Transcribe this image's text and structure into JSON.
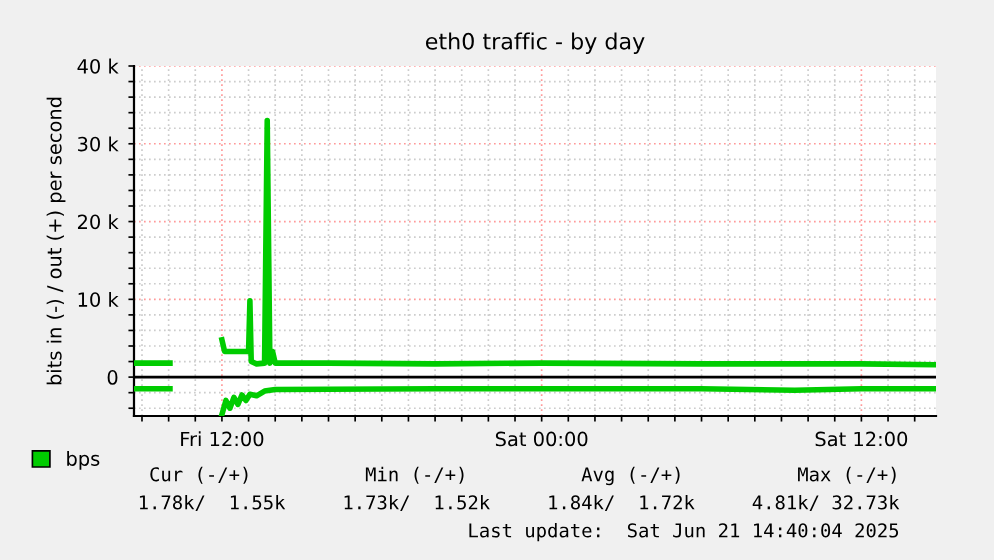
{
  "chart_data": {
    "type": "line",
    "title": "eth0 traffic - by day",
    "ylabel": "bits in (-) / out (+) per second",
    "xlim": [
      "2025-06-20T08:42",
      "2025-06-21T14:48"
    ],
    "ylim": [
      -5000,
      40000
    ],
    "xticks": [
      {
        "value": "2025-06-20T09:00",
        "label": null
      },
      {
        "value": "2025-06-20T10:00",
        "label": null
      },
      {
        "value": "2025-06-20T11:00",
        "label": null
      },
      {
        "value": "2025-06-20T12:00",
        "label": "Fri 12:00"
      },
      {
        "value": "2025-06-20T13:00",
        "label": null
      },
      {
        "value": "2025-06-20T14:00",
        "label": null
      },
      {
        "value": "2025-06-20T15:00",
        "label": null
      },
      {
        "value": "2025-06-20T16:00",
        "label": null
      },
      {
        "value": "2025-06-20T17:00",
        "label": null
      },
      {
        "value": "2025-06-20T18:00",
        "label": null
      },
      {
        "value": "2025-06-20T19:00",
        "label": null
      },
      {
        "value": "2025-06-20T20:00",
        "label": null
      },
      {
        "value": "2025-06-20T21:00",
        "label": null
      },
      {
        "value": "2025-06-20T22:00",
        "label": null
      },
      {
        "value": "2025-06-20T23:00",
        "label": null
      },
      {
        "value": "2025-06-21T00:00",
        "label": "Sat 00:00"
      },
      {
        "value": "2025-06-21T01:00",
        "label": null
      },
      {
        "value": "2025-06-21T02:00",
        "label": null
      },
      {
        "value": "2025-06-21T03:00",
        "label": null
      },
      {
        "value": "2025-06-21T04:00",
        "label": null
      },
      {
        "value": "2025-06-21T05:00",
        "label": null
      },
      {
        "value": "2025-06-21T06:00",
        "label": null
      },
      {
        "value": "2025-06-21T07:00",
        "label": null
      },
      {
        "value": "2025-06-21T08:00",
        "label": null
      },
      {
        "value": "2025-06-21T09:00",
        "label": null
      },
      {
        "value": "2025-06-21T10:00",
        "label": null
      },
      {
        "value": "2025-06-21T11:00",
        "label": null
      },
      {
        "value": "2025-06-21T12:00",
        "label": "Sat 12:00"
      },
      {
        "value": "2025-06-21T13:00",
        "label": null
      },
      {
        "value": "2025-06-21T14:00",
        "label": null
      }
    ],
    "yticks": [
      {
        "value": -4000,
        "label": null
      },
      {
        "value": -2000,
        "label": null
      },
      0,
      {
        "value": 2000,
        "label": null
      },
      {
        "value": 4000,
        "label": null
      },
      {
        "value": 6000,
        "label": null
      },
      {
        "value": 8000,
        "label": null
      },
      {
        "value": 10000,
        "label": "10 k"
      },
      {
        "value": 12000,
        "label": null
      },
      {
        "value": 14000,
        "label": null
      },
      {
        "value": 16000,
        "label": null
      },
      {
        "value": 18000,
        "label": null
      },
      {
        "value": 20000,
        "label": "20 k"
      },
      {
        "value": 22000,
        "label": null
      },
      {
        "value": 24000,
        "label": null
      },
      {
        "value": 26000,
        "label": null
      },
      {
        "value": 28000,
        "label": null
      },
      {
        "value": 30000,
        "label": "30 k"
      },
      {
        "value": 32000,
        "label": null
      },
      {
        "value": 34000,
        "label": null
      },
      {
        "value": 36000,
        "label": null
      },
      {
        "value": 38000,
        "label": null
      },
      {
        "value": 40000,
        "label": "40 k"
      }
    ],
    "grid": true,
    "legend": "bottom left",
    "ref_lines": [
      {
        "axis": "y",
        "value": 0,
        "color": "#000000"
      }
    ],
    "series": [
      {
        "name": "bps",
        "color": "#00cc00",
        "x": [
          "2025-06-20T08:42",
          "2025-06-20T10:03",
          "2025-06-20T10:06",
          "2025-06-20T12:00",
          "2025-06-20T12:06",
          "2025-06-20T13:00",
          "2025-06-20T13:03",
          "2025-06-20T13:06",
          "2025-06-20T13:18",
          "2025-06-20T13:36",
          "2025-06-20T13:42",
          "2025-06-20T13:48",
          "2025-06-20T13:54",
          "2025-06-20T14:00",
          "2025-06-20T16:00",
          "2025-06-20T20:00",
          "2025-06-21T00:00",
          "2025-06-21T06:00",
          "2025-06-21T12:00",
          "2025-06-21T14:48"
        ],
        "values": [
          1800,
          1800,
          null,
          4800,
          3300,
          3300,
          9800,
          2000,
          1700,
          1800,
          33000,
          1800,
          3300,
          1800,
          1800,
          1700,
          1800,
          1700,
          1700,
          1600
        ]
      },
      {
        "color": "#00cc00",
        "x": [
          "2025-06-20T08:42",
          "2025-06-20T10:03",
          "2025-06-20T10:06",
          "2025-06-20T12:00",
          "2025-06-20T12:09",
          "2025-06-20T12:18",
          "2025-06-20T12:27",
          "2025-06-20T12:36",
          "2025-06-20T12:45",
          "2025-06-20T12:54",
          "2025-06-20T13:03",
          "2025-06-20T13:18",
          "2025-06-20T13:36",
          "2025-06-20T14:00",
          "2025-06-20T20:00",
          "2025-06-21T06:00",
          "2025-06-21T09:30",
          "2025-06-21T12:00",
          "2025-06-21T14:48"
        ],
        "values": [
          -1500,
          -1500,
          null,
          -4800,
          -3000,
          -4000,
          -2600,
          -3500,
          -2300,
          -3000,
          -2200,
          -2400,
          -1800,
          -1600,
          -1500,
          -1500,
          -1700,
          -1500,
          -1500
        ]
      }
    ],
    "annotations": [
      "Cur (-/+)          Min (-/+)          Avg (-/+)          Max (-/+)",
      "1.78k/  1.55k     1.73k/  1.52k     1.84k/  1.72k     4.81k/ 32.73k",
      "Last update:  Sat Jun 21 14:40:04 2025"
    ]
  }
}
